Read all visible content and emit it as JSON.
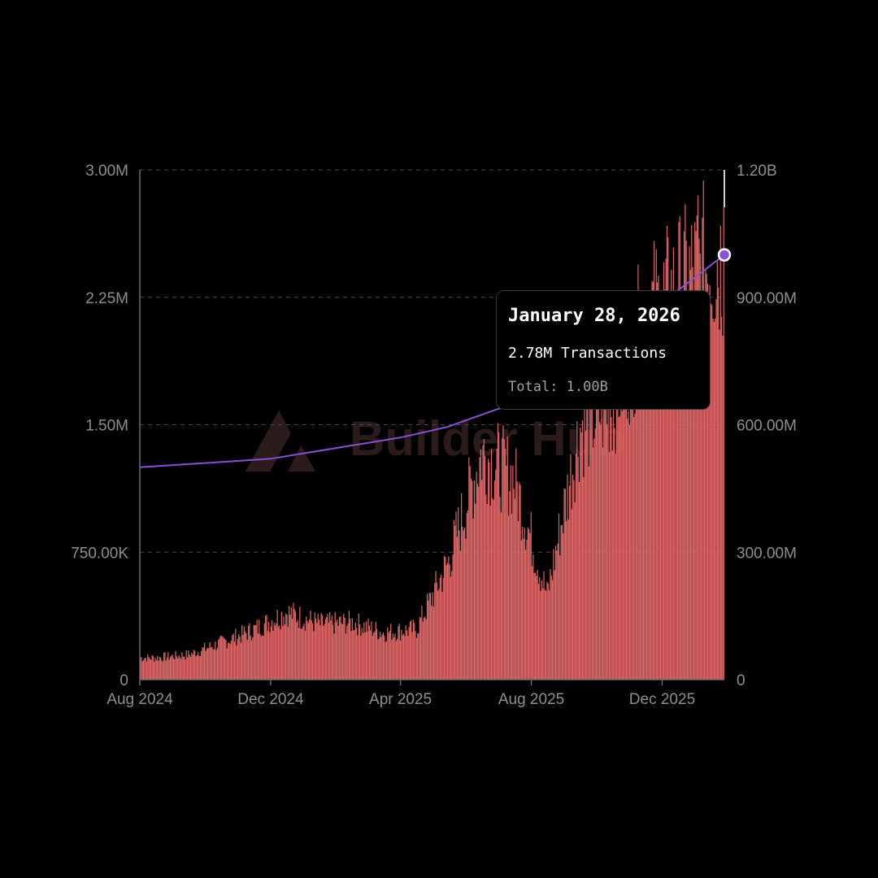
{
  "chart_data": {
    "type": "bar",
    "watermark": "Builder Hub",
    "x_ticks": [
      "Aug 2024",
      "Dec 2024",
      "Apr 2025",
      "Aug 2025",
      "Dec 2025"
    ],
    "y_left": {
      "ticks": [
        "0",
        "750.00K",
        "1.50M",
        "2.25M",
        "3.00M"
      ],
      "ylim": [
        0,
        3000000
      ]
    },
    "y_right": {
      "ticks": [
        "0",
        "300.00M",
        "600.00M",
        "900.00M",
        "1.20B"
      ],
      "ylim": [
        0,
        1200000000
      ]
    },
    "grid": true,
    "series": [
      {
        "kind": "bar",
        "axis": "left",
        "color": "#e46868",
        "x_range": [
          "2024-08-01",
          "2026-01-28"
        ],
        "monthly_typical_values": [
          {
            "month": "2024-08",
            "value": 130000
          },
          {
            "month": "2024-09",
            "value": 150000
          },
          {
            "month": "2024-10",
            "value": 220000
          },
          {
            "month": "2024-11",
            "value": 300000
          },
          {
            "month": "2024-12",
            "value": 400000
          },
          {
            "month": "2025-01",
            "value": 330000
          },
          {
            "month": "2025-02",
            "value": 340000
          },
          {
            "month": "2025-03",
            "value": 280000
          },
          {
            "month": "2025-04",
            "value": 300000
          },
          {
            "month": "2025-05",
            "value": 700000
          },
          {
            "month": "2025-06",
            "value": 1350000
          },
          {
            "month": "2025-07",
            "value": 1200000
          },
          {
            "month": "2025-08",
            "value": 500000
          },
          {
            "month": "2025-09",
            "value": 1500000
          },
          {
            "month": "2025-10",
            "value": 1650000
          },
          {
            "month": "2025-11",
            "value": 2150000
          },
          {
            "month": "2025-12",
            "value": 2300000
          },
          {
            "month": "2026-01",
            "value": 2500000
          }
        ],
        "peak": {
          "date": "2026-01-04",
          "value": 2850000
        },
        "last": {
          "date": "2026-01-28",
          "value": 2780000
        }
      },
      {
        "kind": "line",
        "axis": "right",
        "color": "#8b4fd8",
        "points": [
          {
            "date": "2024-08-01",
            "value": 500000000
          },
          {
            "date": "2024-12-01",
            "value": 520000000
          },
          {
            "date": "2025-04-01",
            "value": 570000000
          },
          {
            "date": "2025-05-15",
            "value": 595000000
          },
          {
            "date": "2025-07-15",
            "value": 650000000
          },
          {
            "date": "2025-09-01",
            "value": 740000000
          },
          {
            "date": "2025-11-01",
            "value": 820000000
          },
          {
            "date": "2025-12-15",
            "value": 915000000
          },
          {
            "date": "2026-01-28",
            "value": 1000000000
          }
        ]
      }
    ],
    "tooltip": {
      "date": "January 28, 2026",
      "transactions": "2.78M Transactions",
      "total": "Total: 1.00B"
    }
  }
}
